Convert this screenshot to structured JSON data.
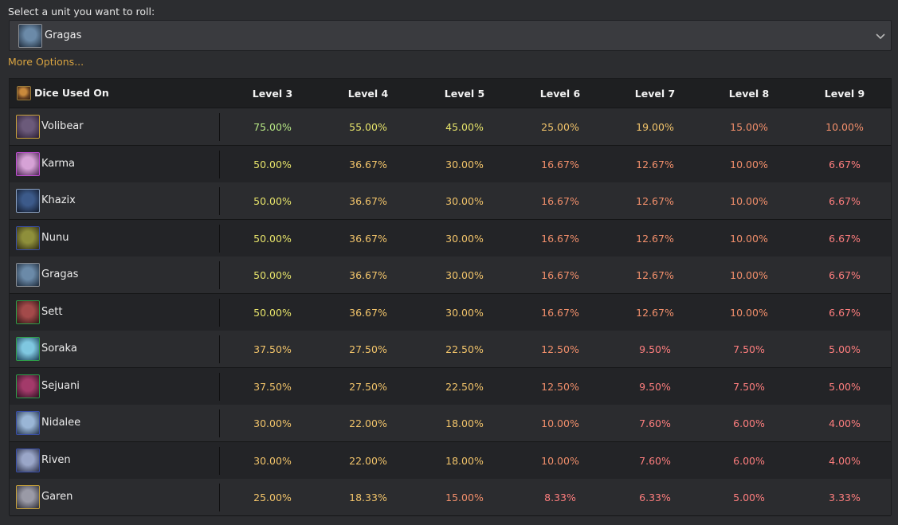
{
  "prompt": "Select a unit you want to roll:",
  "select": {
    "value": "Gragas",
    "icon": "gragas-portrait"
  },
  "more_options": "More Options...",
  "colors": {
    "high": "#b8e986",
    "mid_high": "#e6e36a",
    "mid": "#f2c46a",
    "low": "#f28f6b",
    "lowest": "#ff7e7e",
    "accent_gold": "#d9a441"
  },
  "table": {
    "header": {
      "dice_label": "Dice Used On",
      "levels": [
        "Level 3",
        "Level 4",
        "Level 5",
        "Level 6",
        "Level 7",
        "Level 8",
        "Level 9"
      ]
    },
    "rows": [
      {
        "name": "Volibear",
        "border": "#c9a33a",
        "tint": [
          "#6b5a7a",
          "#2a1e33"
        ],
        "values": [
          "75.00%",
          "55.00%",
          "45.00%",
          "25.00%",
          "19.00%",
          "15.00%",
          "10.00%"
        ]
      },
      {
        "name": "Karma",
        "border": "#c04fd3",
        "tint": [
          "#d6a2d6",
          "#4a2552"
        ],
        "values": [
          "50.00%",
          "36.67%",
          "30.00%",
          "16.67%",
          "12.67%",
          "10.00%",
          "6.67%"
        ]
      },
      {
        "name": "Khazix",
        "border": "#8aa0c0",
        "tint": [
          "#3c5a8a",
          "#121a2b"
        ],
        "values": [
          "50.00%",
          "36.67%",
          "30.00%",
          "16.67%",
          "12.67%",
          "10.00%",
          "6.67%"
        ]
      },
      {
        "name": "Nunu",
        "border": "#3a4fa8",
        "tint": [
          "#8e8f3b",
          "#2e2a12"
        ],
        "values": [
          "50.00%",
          "36.67%",
          "30.00%",
          "16.67%",
          "12.67%",
          "10.00%",
          "6.67%"
        ]
      },
      {
        "name": "Gragas",
        "border": "#8a8d93",
        "tint": [
          "#6b8aa8",
          "#1d2a3a"
        ],
        "values": [
          "50.00%",
          "36.67%",
          "30.00%",
          "16.67%",
          "12.67%",
          "10.00%",
          "6.67%"
        ]
      },
      {
        "name": "Sett",
        "border": "#2e9e4a",
        "tint": [
          "#a34a4a",
          "#2b1414"
        ],
        "values": [
          "50.00%",
          "36.67%",
          "30.00%",
          "16.67%",
          "12.67%",
          "10.00%",
          "6.67%"
        ]
      },
      {
        "name": "Soraka",
        "border": "#2e9e4a",
        "tint": [
          "#7fc7e0",
          "#1b3d55"
        ],
        "values": [
          "37.50%",
          "27.50%",
          "22.50%",
          "12.50%",
          "9.50%",
          "7.50%",
          "5.00%"
        ]
      },
      {
        "name": "Sejuani",
        "border": "#2e9e4a",
        "tint": [
          "#a33a6a",
          "#2b1020"
        ],
        "values": [
          "37.50%",
          "27.50%",
          "22.50%",
          "12.50%",
          "9.50%",
          "7.50%",
          "5.00%"
        ]
      },
      {
        "name": "Nidalee",
        "border": "#3a4fa8",
        "tint": [
          "#9ab6d6",
          "#22324a"
        ],
        "values": [
          "30.00%",
          "22.00%",
          "18.00%",
          "10.00%",
          "7.60%",
          "6.00%",
          "4.00%"
        ]
      },
      {
        "name": "Riven",
        "border": "#3a4fa8",
        "tint": [
          "#9aa6c8",
          "#2a2f48"
        ],
        "values": [
          "30.00%",
          "22.00%",
          "18.00%",
          "10.00%",
          "7.60%",
          "6.00%",
          "4.00%"
        ]
      },
      {
        "name": "Garen",
        "border": "#c9a33a",
        "tint": [
          "#9a9aa6",
          "#2a2a33"
        ],
        "values": [
          "25.00%",
          "18.33%",
          "15.00%",
          "8.33%",
          "6.33%",
          "5.00%",
          "3.33%"
        ]
      }
    ]
  }
}
